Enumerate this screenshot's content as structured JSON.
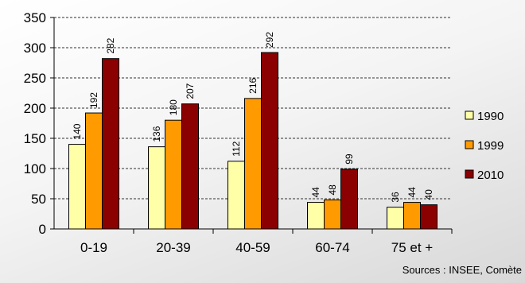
{
  "chart_data": {
    "type": "bar",
    "title": "",
    "xlabel": "",
    "ylabel": "",
    "categories": [
      "0-19",
      "20-39",
      "40-59",
      "60-74",
      "75 et +"
    ],
    "series": [
      {
        "name": "1990",
        "values": [
          140,
          136,
          112,
          44,
          36
        ],
        "color": "#ffffa8"
      },
      {
        "name": "1999",
        "values": [
          192,
          180,
          216,
          48,
          44
        ],
        "color": "#ff9a00"
      },
      {
        "name": "2010",
        "values": [
          282,
          207,
          292,
          99,
          40
        ],
        "color": "#8b0000"
      }
    ],
    "ylim": [
      0,
      350
    ],
    "yticks": [
      0,
      50,
      100,
      150,
      200,
      250,
      300,
      350
    ],
    "grid": true,
    "legend": "right",
    "source": "Sources : INSEE, Comète"
  }
}
